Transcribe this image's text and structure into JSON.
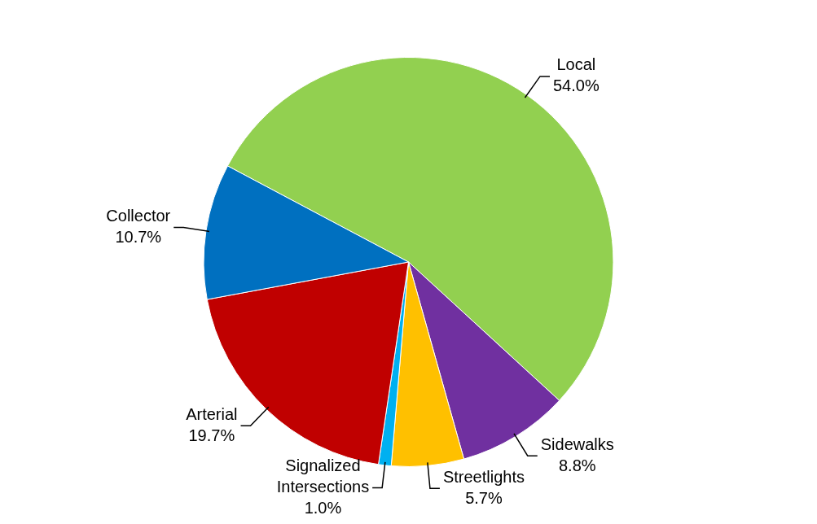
{
  "chart_data": {
    "type": "pie",
    "categories": [
      "Local",
      "Sidewalks",
      "Streetlights",
      "Signalized Intersections",
      "Arterial",
      "Collector"
    ],
    "values": [
      54.0,
      8.8,
      5.7,
      1.0,
      19.7,
      10.7
    ],
    "colors": [
      "#92d050",
      "#7030a0",
      "#ffc000",
      "#00b0f0",
      "#c00000",
      "#0070c0"
    ],
    "value_labels": [
      "54.0%",
      "8.8%",
      "5.7%",
      "1.0%",
      "19.7%",
      "10.7%"
    ],
    "legend": false
  }
}
